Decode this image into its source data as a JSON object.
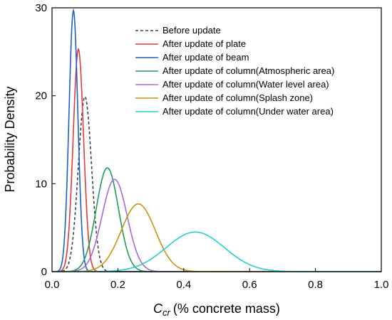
{
  "chart_data": {
    "type": "line",
    "title": "",
    "xlabel": "(% concrete mass)",
    "xlabel_symbol": "C",
    "xlabel_subscript": "cr",
    "ylabel": "Probability Density",
    "xlim": [
      0.0,
      1.0
    ],
    "ylim": [
      0,
      30
    ],
    "xticks": [
      "0.0",
      "0.2",
      "0.4",
      "0.6",
      "0.8",
      "1.0"
    ],
    "yticks": [
      "0",
      "10",
      "20",
      "30"
    ],
    "grid": false,
    "legend_position": "top-right",
    "series": [
      {
        "name": "Before update",
        "color": "#404040",
        "dash": "dashed",
        "mean": 0.1,
        "peak": 19.9
      },
      {
        "name": "After update of plate",
        "color": "#e03a3a",
        "dash": "solid",
        "mean": 0.08,
        "peak": 25.3
      },
      {
        "name": "After update of beam",
        "color": "#1f5fc4",
        "dash": "solid",
        "mean": 0.065,
        "peak": 29.7
      },
      {
        "name": "After update of column(Atmospheric area)",
        "color": "#1f9a5a",
        "dash": "solid",
        "mean": 0.168,
        "peak": 11.8
      },
      {
        "name": "After update of column(Water level area)",
        "color": "#a66ad8",
        "dash": "solid",
        "mean": 0.19,
        "peak": 10.5
      },
      {
        "name": "After update of column(Splash zone)",
        "color": "#c8930a",
        "dash": "solid",
        "mean": 0.262,
        "peak": 7.7
      },
      {
        "name": "After update of column(Under water area)",
        "color": "#22cfcf",
        "dash": "solid",
        "mean": 0.435,
        "peak": 4.5
      }
    ]
  }
}
